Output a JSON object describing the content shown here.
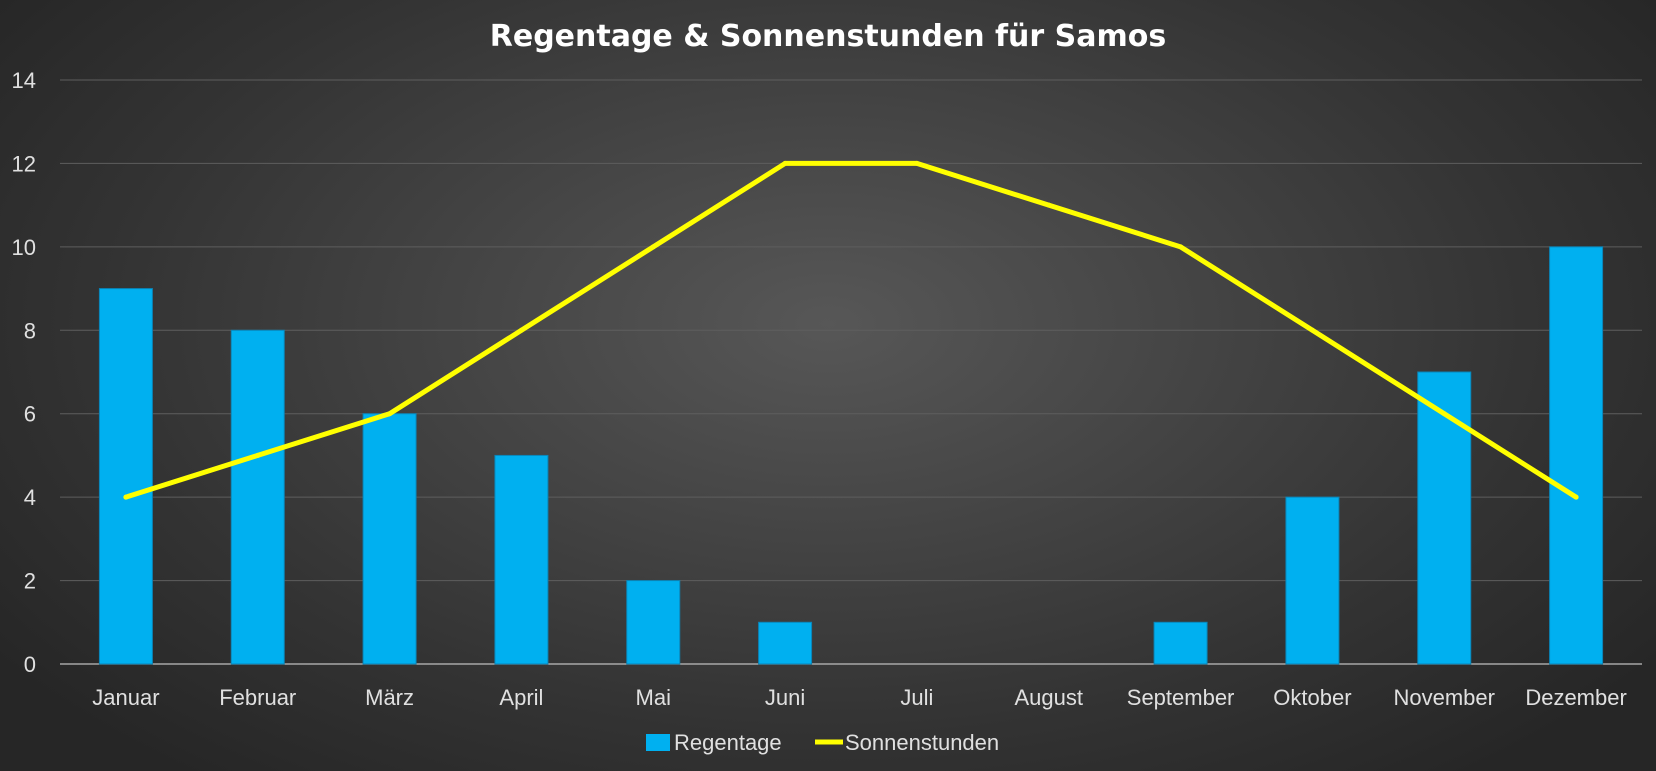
{
  "chart_data": {
    "type": "bar",
    "title": "Regentage & Sonnenstunden für Samos",
    "categories": [
      "Januar",
      "Februar",
      "März",
      "April",
      "Mai",
      "Juni",
      "Juli",
      "August",
      "September",
      "Oktober",
      "November",
      "Dezember"
    ],
    "series": [
      {
        "name": "Regentage",
        "type": "bar",
        "color": "#00b0f0",
        "values": [
          9,
          8,
          6,
          5,
          2,
          1,
          0,
          0,
          1,
          4,
          7,
          10
        ]
      },
      {
        "name": "Sonnenstunden",
        "type": "line",
        "color": "#ffff00",
        "values": [
          4,
          5,
          6,
          8,
          10,
          12,
          12,
          11,
          10,
          8,
          6,
          4
        ]
      }
    ],
    "ylim": [
      0,
      14
    ],
    "yticks": [
      "0",
      "2",
      "4",
      "6",
      "8",
      "10",
      "12",
      "14"
    ],
    "grid": true,
    "legend_position": "bottom",
    "xlabel": "",
    "ylabel": ""
  }
}
